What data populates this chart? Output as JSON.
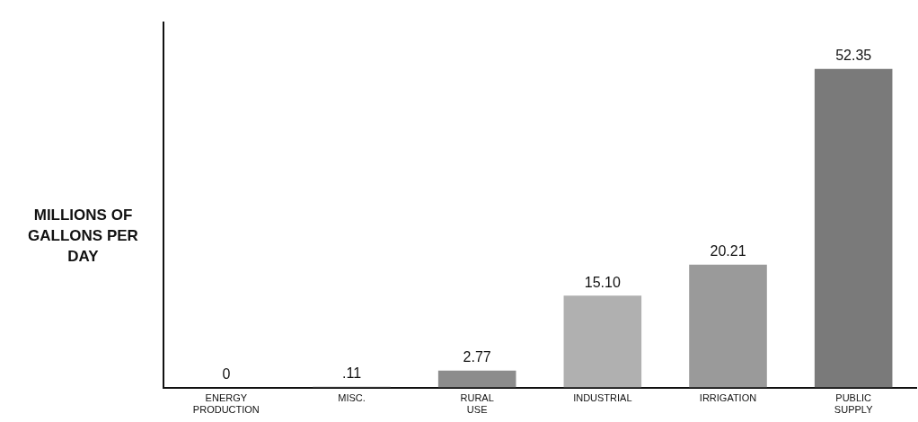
{
  "chart_data": {
    "type": "bar",
    "ylabel": "MILLIONS OF GALLONS PER DAY",
    "categories": [
      "ENERGY PRODUCTION",
      "MISC.",
      "RURAL USE",
      "INDUSTRIAL",
      "IRRIGATION",
      "PUBLIC SUPPLY"
    ],
    "values": [
      0,
      0.11,
      2.77,
      15.1,
      20.21,
      52.35
    ],
    "value_labels": [
      "0",
      ".11",
      "2.77",
      "15.10",
      "20.21",
      "52.35"
    ],
    "colors": [
      "#8c8c8c",
      "#8c8c8c",
      "#8c8c8c",
      "#b0b0b0",
      "#9a9a9a",
      "#7a7a7a"
    ],
    "tick_labels": "x",
    "grid": false,
    "legend": false
  }
}
